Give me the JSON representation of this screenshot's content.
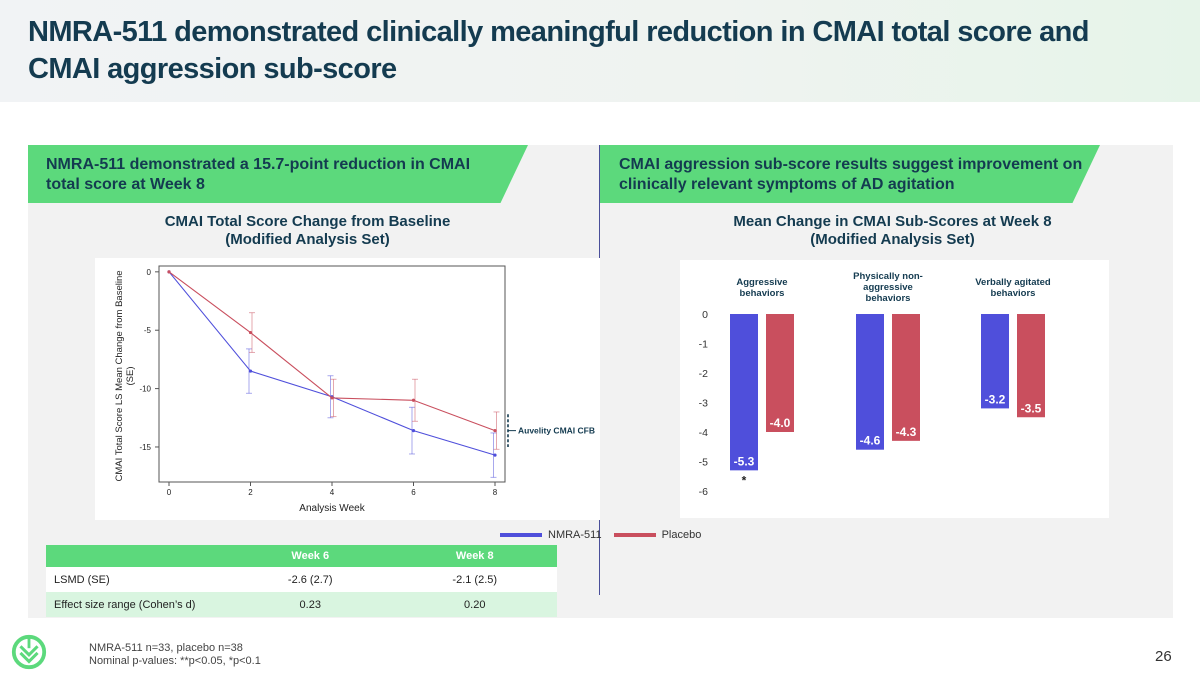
{
  "title": "NMRA-511 demonstrated clinically meaningful reduction in CMAI total score and CMAI aggression sub-score",
  "left_banner": "NMRA-511 demonstrated a 15.7-point reduction in CMAI total score at Week 8",
  "right_banner": "CMAI aggression sub-score results suggest improvement on clinically relevant symptoms of AD agitation",
  "left_heading_1": "CMAI Total Score Change from Baseline",
  "left_heading_2": "(Modified Analysis Set)",
  "right_heading_1": "Mean Change in CMAI Sub-Scores at Week 8",
  "right_heading_2": "(Modified Analysis Set)",
  "legend": {
    "nmra": "NMRA-511",
    "placebo": "Placebo"
  },
  "table": {
    "headers": [
      "",
      "Week 6",
      "Week 8"
    ],
    "rows": [
      [
        "LSMD (SE)",
        "-2.6 (2.7)",
        "-2.1 (2.5)"
      ],
      [
        "Effect size range (Cohen’s d)",
        "0.23",
        "0.20"
      ]
    ]
  },
  "footnote": {
    "line1": "NMRA-511 n=33, placebo n=38",
    "line2": "Nominal p-values: **p<0.05, *p<0.1"
  },
  "page_number": "26",
  "colors": {
    "nmra": "#4f4fdb",
    "placebo": "#c94f5e",
    "green": "#5cd97c",
    "navy": "#143b50"
  },
  "chart_data": [
    {
      "type": "line",
      "title": "CMAI Total Score Change from Baseline",
      "xlabel": "Analysis Week",
      "ylabel_1": "CMAI Total Score LS Mean Change from Baseline",
      "ylabel_2": "(SE)",
      "x": [
        0,
        2,
        4,
        6,
        8
      ],
      "xlim": [
        0,
        8
      ],
      "ylim": [
        -18,
        0.5
      ],
      "xticks": [
        "0",
        "2",
        "4",
        "6",
        "8"
      ],
      "yticks": [
        {
          "value": 0,
          "label": "0"
        },
        {
          "value": -5,
          "label": "-5"
        },
        {
          "value": -10,
          "label": "-10"
        },
        {
          "value": -15,
          "label": "-15"
        }
      ],
      "series": [
        {
          "name": "NMRA-511",
          "values": [
            0,
            -8.5,
            -10.7,
            -13.6,
            -15.7
          ],
          "se": [
            0,
            1.9,
            1.8,
            2.0,
            1.9
          ]
        },
        {
          "name": "Placebo",
          "values": [
            0,
            -5.2,
            -10.8,
            -11.0,
            -13.6
          ],
          "se": [
            0,
            1.7,
            1.6,
            1.8,
            1.6
          ]
        }
      ],
      "annotation": {
        "label": "Auvelity CMAI CFB",
        "y_range": [
          -15,
          -12.2
        ]
      }
    },
    {
      "type": "bar",
      "title": "Mean Change in CMAI Sub-Scores at Week 8",
      "categories": [
        "Aggressive behaviors",
        "Physically non-aggressive behaviors",
        "Verbally agitated behaviors"
      ],
      "category_lines": [
        [
          "Aggressive",
          "behaviors"
        ],
        [
          "Physically non-",
          "aggressive",
          "behaviors"
        ],
        [
          "Verbally agitated",
          "behaviors"
        ]
      ],
      "series": [
        {
          "name": "NMRA-511",
          "values": [
            -5.3,
            -4.6,
            -3.2
          ],
          "labels": [
            "-5.3",
            "-4.6",
            "-3.2"
          ]
        },
        {
          "name": "Placebo",
          "values": [
            -4.0,
            -4.3,
            -3.5
          ],
          "labels": [
            "-4.0",
            "-4.3",
            "-3.5"
          ]
        }
      ],
      "ylim": [
        -6,
        0
      ],
      "yticks": [
        "0",
        "-1",
        "-2",
        "-3",
        "-4",
        "-5",
        "-6"
      ],
      "significance": {
        "category": 0,
        "series": 0,
        "mark": "*"
      }
    }
  ]
}
